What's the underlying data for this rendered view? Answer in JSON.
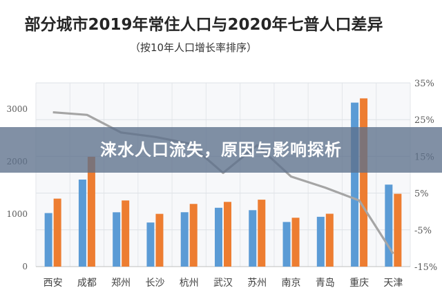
{
  "chart_data": {
    "type": "bar",
    "title": "部分城市2019年常住人口与2020年七普人口差异",
    "subtitle": "（按10年人口增长率排序）",
    "categories": [
      "西安",
      "成都",
      "郑州",
      "长沙",
      "杭州",
      "武汉",
      "苏州",
      "南京",
      "青岛",
      "重庆",
      "天津"
    ],
    "series": [
      {
        "kind": "bar",
        "color": "#5b9bd5",
        "values": [
          1020,
          1658,
          1035,
          840,
          1036,
          1121,
          1075,
          850,
          949,
          3124,
          1562
        ]
      },
      {
        "kind": "bar",
        "color": "#ed7d31",
        "values": [
          1295,
          2093,
          1260,
          1005,
          1194,
          1233,
          1275,
          931,
          1007,
          3205,
          1387
        ]
      },
      {
        "kind": "line",
        "axis": "right",
        "color": "#a5a5a5",
        "values": [
          27,
          26.3,
          21.5,
          20.3,
          18.5,
          10.5,
          18,
          9.5,
          6.5,
          3,
          -11.5
        ]
      }
    ],
    "y_left": {
      "ticks": [
        0,
        1000,
        2000,
        3000
      ],
      "ylim": [
        0,
        3500
      ]
    },
    "y_right": {
      "ticks": [
        "-15%",
        "-5%",
        "5%",
        "15%",
        "25%",
        "35%"
      ],
      "ylim": [
        -15,
        35
      ]
    },
    "grid": true
  },
  "banner": {
    "text": "涞水人口流失，原因与影响探析"
  }
}
